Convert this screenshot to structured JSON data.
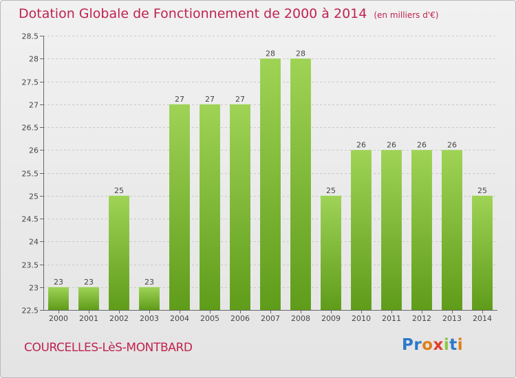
{
  "title": "Dotation Globale de Fonctionnement de 2000 à 2014",
  "subtitle": "(en milliers d'€)",
  "commune": "COURCELLES-LèS-MONTBARD",
  "logo": {
    "text": "Proxiti",
    "colors": [
      "#2b78c9",
      "#2b78c9",
      "#e07d16",
      "#e23d2b",
      "#8cc63f",
      "#2b78c9",
      "#e07d16"
    ]
  },
  "colors": {
    "title": "#c0224f",
    "bar_top": "#9fd356",
    "bar_bottom": "#5f9c1a",
    "grid": "#c8c8c8"
  },
  "chart_data": {
    "type": "bar",
    "title": "Dotation Globale de Fonctionnement de 2000 à 2014",
    "ylabel": "(en milliers d'€)",
    "xlabel": "",
    "categories": [
      "2000",
      "2001",
      "2002",
      "2003",
      "2004",
      "2005",
      "2006",
      "2007",
      "2008",
      "2009",
      "2010",
      "2011",
      "2012",
      "2013",
      "2014"
    ],
    "values": [
      23,
      23,
      25,
      23,
      27,
      27,
      27,
      28,
      28,
      25,
      26,
      26,
      26,
      26,
      25
    ],
    "value_labels": [
      "23",
      "23",
      "25",
      "23",
      "27",
      "27",
      "27",
      "28",
      "28",
      "25",
      "26",
      "26",
      "26",
      "26",
      "25"
    ],
    "ylim": [
      22.5,
      28.5
    ],
    "yticks": [
      22.5,
      23,
      23.5,
      24,
      24.5,
      25,
      25.5,
      26,
      26.5,
      27,
      27.5,
      28,
      28.5
    ],
    "ytick_labels": [
      "22.5",
      "23",
      "23.5",
      "24",
      "24.5",
      "25",
      "25.5",
      "26",
      "26.5",
      "27",
      "27.5",
      "28",
      "28.5"
    ],
    "grid": true
  }
}
